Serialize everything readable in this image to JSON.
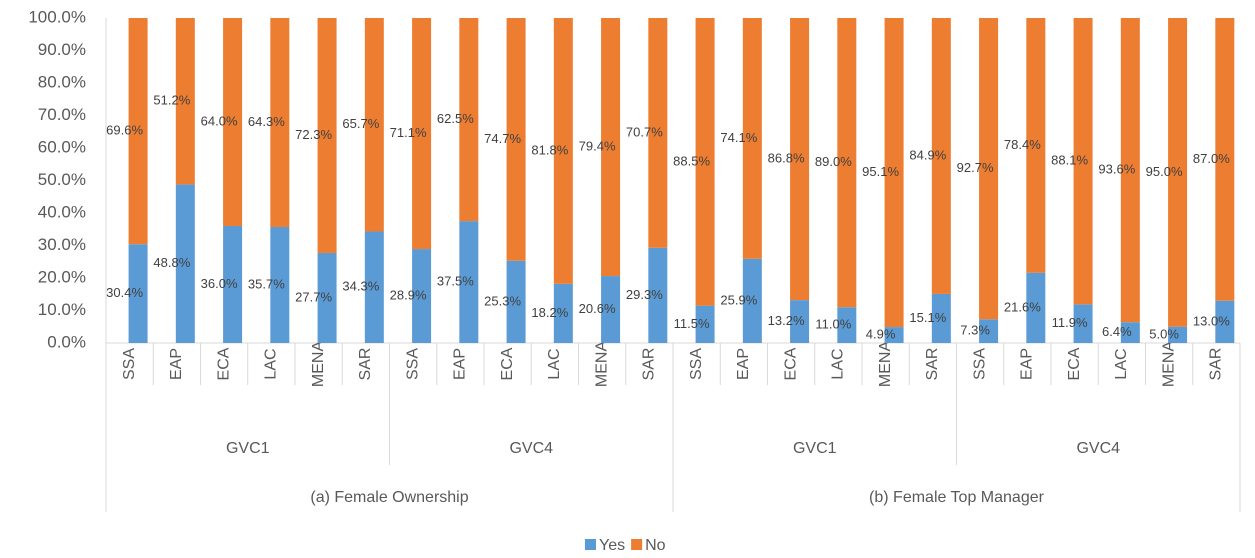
{
  "chart_data": {
    "type": "bar",
    "stacked": true,
    "category_groups": [
      {
        "name": "(a) Female Ownership",
        "groups": [
          {
            "name": "GVC1",
            "categories": [
              "SSA",
              "EAP",
              "ECA",
              "LAC",
              "MENA",
              "SAR"
            ]
          },
          {
            "name": "GVC4",
            "categories": [
              "SSA",
              "EAP",
              "ECA",
              "LAC",
              "MENA",
              "SAR"
            ]
          }
        ]
      },
      {
        "name": "(b) Female Top Manager",
        "groups": [
          {
            "name": "GVC1",
            "categories": [
              "SSA",
              "EAP",
              "ECA",
              "LAC",
              "MENA",
              "SAR"
            ]
          },
          {
            "name": "GVC4",
            "categories": [
              "SSA",
              "EAP",
              "ECA",
              "LAC",
              "MENA",
              "SAR"
            ]
          }
        ]
      }
    ],
    "series": [
      {
        "name": "Yes",
        "color": "#5b9bd5",
        "values": [
          30.4,
          48.8,
          36.0,
          35.7,
          27.7,
          34.3,
          28.9,
          37.5,
          25.3,
          18.2,
          20.6,
          29.3,
          11.5,
          25.9,
          13.2,
          11.0,
          4.9,
          15.1,
          7.3,
          21.6,
          11.9,
          6.4,
          5.0,
          13.0
        ],
        "value_labels": [
          "30.4%",
          "48.8%",
          "36.0%",
          "35.7%",
          "27.7%",
          "34.3%",
          "28.9%",
          "37.5%",
          "25.3%",
          "18.2%",
          "20.6%",
          "29.3%",
          "11.5%",
          "25.9%",
          "13.2%",
          "11.0%",
          "4.9%",
          "15.1%",
          "7.3%",
          "21.6%",
          "11.9%",
          "6.4%",
          "5.0%",
          "13.0%"
        ]
      },
      {
        "name": "No",
        "color": "#ed7d31",
        "values": [
          69.6,
          51.2,
          64.0,
          64.3,
          72.3,
          65.7,
          71.1,
          62.5,
          74.7,
          81.8,
          79.4,
          70.7,
          88.5,
          74.1,
          86.8,
          89.0,
          95.1,
          84.9,
          92.7,
          78.4,
          88.1,
          93.6,
          95.0,
          87.0
        ],
        "value_labels": [
          "69.6%",
          "51.2%",
          "64.0%",
          "64.3%",
          "72.3%",
          "65.7%",
          "71.1%",
          "62.5%",
          "74.7%",
          "81.8%",
          "79.4%",
          "70.7%",
          "88.5%",
          "74.1%",
          "86.8%",
          "89.0%",
          "95.1%",
          "84.9%",
          "92.7%",
          "78.4%",
          "88.1%",
          "93.6%",
          "95.0%",
          "87.0%"
        ]
      }
    ],
    "ylim": [
      0,
      100
    ],
    "yticks": [
      {
        "value": 0,
        "label": "0.0%"
      },
      {
        "value": 10,
        "label": "10.0%"
      },
      {
        "value": 20,
        "label": "20.0%"
      },
      {
        "value": 30,
        "label": "30.0%"
      },
      {
        "value": 40,
        "label": "40.0%"
      },
      {
        "value": 50,
        "label": "50.0%"
      },
      {
        "value": 60,
        "label": "60.0%"
      },
      {
        "value": 70,
        "label": "70.0%"
      },
      {
        "value": 80,
        "label": "80.0%"
      },
      {
        "value": 90,
        "label": "90.0%"
      },
      {
        "value": 100,
        "label": "100.0%"
      }
    ],
    "grid": false,
    "legend": "bottom"
  }
}
